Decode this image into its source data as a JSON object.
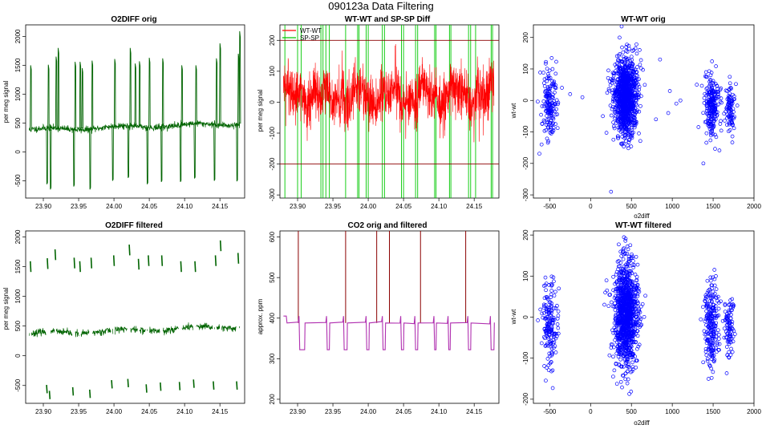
{
  "figure": {
    "title": "090123a   Data Filtering"
  },
  "chart_data": [
    {
      "id": "p1",
      "type": "line",
      "title": "O2DIFF orig",
      "xlabel": "",
      "ylabel": "per meg signal",
      "xlim": [
        23.875,
        24.185
      ],
      "ylim": [
        -800,
        2200
      ],
      "xticks": [
        23.9,
        23.95,
        24.0,
        24.05,
        24.1,
        24.15
      ],
      "xtick_labels": [
        "23.90",
        "23.95",
        "24.00",
        "24.05",
        "24.10",
        "24.15"
      ],
      "yticks": [
        -500,
        0,
        500,
        1000,
        1500,
        2000
      ],
      "ytick_labels": [
        "-500",
        "0",
        "500",
        "1000",
        "1500",
        "2000"
      ],
      "series": [
        {
          "name": "O2DIFF orig",
          "color": "#006400",
          "x_range": [
            23.88,
            24.178
          ],
          "baseline_start": 380,
          "baseline_end": 490,
          "noise": 28
        }
      ],
      "spikes": [
        {
          "x": 23.882,
          "y": 1500
        },
        {
          "x": 23.905,
          "y": -560
        },
        {
          "x": 23.907,
          "y": 1510
        },
        {
          "x": 23.91,
          "y": -650
        },
        {
          "x": 23.918,
          "y": 1650
        },
        {
          "x": 23.921,
          "y": 1800
        },
        {
          "x": 23.943,
          "y": -600
        },
        {
          "x": 23.945,
          "y": 1560
        },
        {
          "x": 23.952,
          "y": 1560
        },
        {
          "x": 23.955,
          "y": 1450
        },
        {
          "x": 23.966,
          "y": -650
        },
        {
          "x": 23.969,
          "y": 1580
        },
        {
          "x": 23.998,
          "y": -500
        },
        {
          "x": 24.001,
          "y": 1610
        },
        {
          "x": 24.02,
          "y": -450
        },
        {
          "x": 24.023,
          "y": 1800
        },
        {
          "x": 24.03,
          "y": 1530
        },
        {
          "x": 24.036,
          "y": 1570
        },
        {
          "x": 24.047,
          "y": -560
        },
        {
          "x": 24.05,
          "y": 1630
        },
        {
          "x": 24.067,
          "y": -520
        },
        {
          "x": 24.069,
          "y": 1620
        },
        {
          "x": 24.094,
          "y": -520
        },
        {
          "x": 24.096,
          "y": 1500
        },
        {
          "x": 24.114,
          "y": -460
        },
        {
          "x": 24.116,
          "y": 1500
        },
        {
          "x": 24.142,
          "y": -500
        },
        {
          "x": 24.145,
          "y": 1620
        },
        {
          "x": 24.15,
          "y": 1880
        },
        {
          "x": 24.174,
          "y": -510
        },
        {
          "x": 24.176,
          "y": 1700
        },
        {
          "x": 24.178,
          "y": 2090
        }
      ]
    },
    {
      "id": "p2",
      "type": "line",
      "title": "WT-WT and SP-SP Diff",
      "xlabel": "",
      "ylabel": "per meg signal",
      "xlim": [
        23.875,
        24.185
      ],
      "ylim": [
        -310,
        250
      ],
      "xticks": [
        23.9,
        23.95,
        24.0,
        24.05,
        24.1,
        24.15
      ],
      "xtick_labels": [
        "23.90",
        "23.95",
        "24.00",
        "24.05",
        "24.10",
        "24.15"
      ],
      "yticks": [
        -300,
        -200,
        -100,
        0,
        100,
        200
      ],
      "ytick_labels": [
        "-300",
        "-200",
        "-100",
        "0",
        "100",
        "200"
      ],
      "hlines": [
        {
          "y": 200,
          "color": "#8b0000"
        },
        {
          "y": -200,
          "color": "#8b0000"
        }
      ],
      "legend": [
        {
          "label": "WT-WT",
          "color": "#ff0000"
        },
        {
          "label": "SP-SP",
          "color": "#00c800"
        }
      ],
      "series": [
        {
          "name": "WT-WT",
          "color": "#ff0000",
          "x_range": [
            23.88,
            24.178
          ],
          "mean": 20,
          "amplitude": 75
        },
        {
          "name": "SP-SP",
          "color": "#00c800",
          "x_spikes": [
            23.882,
            23.9,
            23.905,
            23.933,
            23.936,
            23.94,
            23.945,
            23.968,
            23.985,
            23.987,
            23.997,
            24.0,
            24.02,
            24.023,
            24.047,
            24.05,
            24.067,
            24.07,
            24.094,
            24.096,
            24.115,
            24.117,
            24.142,
            24.145,
            24.152,
            24.174,
            24.176
          ]
        }
      ]
    },
    {
      "id": "p3",
      "type": "scatter",
      "title": "WT-WT orig",
      "xlabel": "o2diff",
      "ylabel": "wt-wt",
      "xlim": [
        -700,
        2000
      ],
      "ylim": [
        -310,
        240
      ],
      "xticks": [
        -500,
        0,
        500,
        1000,
        1500,
        2000
      ],
      "xtick_labels": [
        "-500",
        "0",
        "500",
        "1000",
        "1500",
        "2000"
      ],
      "yticks": [
        -300,
        -200,
        -100,
        0,
        100,
        200
      ],
      "ytick_labels": [
        "-300",
        "-200",
        "-100",
        "0",
        "100",
        "200"
      ],
      "marker_color": "#0000ff",
      "clusters": [
        {
          "x_center": -500,
          "x_spread": 45,
          "y_center": -10,
          "y_spread": 50,
          "count": 170
        },
        {
          "x_center": 430,
          "x_spread": 70,
          "y_center": 10,
          "y_spread": 60,
          "count": 1100
        },
        {
          "x_center": 1480,
          "x_spread": 45,
          "y_center": -15,
          "y_spread": 50,
          "count": 220
        },
        {
          "x_center": 1700,
          "x_spread": 35,
          "y_center": -20,
          "y_spread": 40,
          "count": 90
        }
      ],
      "outliers": [
        {
          "x": 380,
          "y": 235
        },
        {
          "x": 250,
          "y": -290
        },
        {
          "x": 970,
          "y": 30
        },
        {
          "x": 1050,
          "y": -10
        },
        {
          "x": 950,
          "y": -40
        },
        {
          "x": 1100,
          "y": 0
        },
        {
          "x": -250,
          "y": 20
        },
        {
          "x": -100,
          "y": 10
        },
        {
          "x": 150,
          "y": -50
        },
        {
          "x": 800,
          "y": -60
        },
        {
          "x": 850,
          "y": 130
        },
        {
          "x": 1380,
          "y": -200
        },
        {
          "x": 1300,
          "y": 50
        },
        {
          "x": -600,
          "y": -140
        },
        {
          "x": -350,
          "y": 40
        },
        {
          "x": 600,
          "y": 160
        }
      ]
    },
    {
      "id": "p4",
      "type": "line",
      "title": "O2DIFF filtered",
      "xlabel": "",
      "ylabel": "per meg signal",
      "xlim": [
        23.875,
        24.185
      ],
      "ylim": [
        -800,
        2100
      ],
      "xticks": [
        23.9,
        23.95,
        24.0,
        24.05,
        24.1,
        24.15
      ],
      "xtick_labels": [
        "23.90",
        "23.95",
        "24.00",
        "24.05",
        "24.10",
        "24.15"
      ],
      "yticks": [
        -500,
        0,
        500,
        1000,
        1500,
        2000
      ],
      "ytick_labels": [
        "-500",
        "0",
        "500",
        "1000",
        "1500",
        "2000"
      ],
      "series": [
        {
          "name": "O2DIFF filtered",
          "color": "#006400",
          "x_range": [
            23.88,
            24.178
          ],
          "baseline_start": 370,
          "baseline_end": 490,
          "noise": 28
        }
      ],
      "high_segments": [
        {
          "x": 23.882,
          "y": 1500
        },
        {
          "x": 23.906,
          "y": 1550
        },
        {
          "x": 23.917,
          "y": 1700
        },
        {
          "x": 23.944,
          "y": 1560
        },
        {
          "x": 23.952,
          "y": 1500
        },
        {
          "x": 23.968,
          "y": 1560
        },
        {
          "x": 24.0,
          "y": 1600
        },
        {
          "x": 24.022,
          "y": 1780
        },
        {
          "x": 24.035,
          "y": 1540
        },
        {
          "x": 24.049,
          "y": 1600
        },
        {
          "x": 24.068,
          "y": 1600
        },
        {
          "x": 24.095,
          "y": 1500
        },
        {
          "x": 24.115,
          "y": 1500
        },
        {
          "x": 24.144,
          "y": 1600
        },
        {
          "x": 24.151,
          "y": 1850
        },
        {
          "x": 24.176,
          "y": 1640
        }
      ],
      "low_segments": [
        {
          "x": 23.905,
          "y": -560
        },
        {
          "x": 23.909,
          "y": -660
        },
        {
          "x": 23.942,
          "y": -600
        },
        {
          "x": 23.966,
          "y": -640
        },
        {
          "x": 23.997,
          "y": -480
        },
        {
          "x": 24.02,
          "y": -460
        },
        {
          "x": 24.046,
          "y": -550
        },
        {
          "x": 24.066,
          "y": -520
        },
        {
          "x": 24.093,
          "y": -510
        },
        {
          "x": 24.113,
          "y": -470
        },
        {
          "x": 24.141,
          "y": -500
        },
        {
          "x": 24.174,
          "y": -500
        }
      ]
    },
    {
      "id": "p5",
      "type": "line",
      "title": "CO2 orig and filtered",
      "xlabel": "",
      "ylabel": "approx. ppm",
      "xlim": [
        23.875,
        24.185
      ],
      "ylim": [
        190,
        615
      ],
      "xticks": [
        23.9,
        23.95,
        24.0,
        24.05,
        24.1,
        24.15
      ],
      "xtick_labels": [
        "23.90",
        "23.95",
        "24.00",
        "24.05",
        "24.10",
        "24.15"
      ],
      "yticks": [
        200,
        300,
        400,
        500,
        600
      ],
      "ytick_labels": [
        "200",
        "300",
        "400",
        "500",
        "600"
      ],
      "series": [
        {
          "name": "CO2 orig",
          "color": "#8b0000",
          "spike_x": [
            23.901,
            23.968,
            24.012,
            24.03,
            24.074,
            24.138
          ]
        },
        {
          "name": "CO2 filtered",
          "color": "#b030b0",
          "baseline": 388,
          "start_level": 405,
          "low_level": 322,
          "high_level": 405,
          "dips": [
            {
              "x0": 23.903,
              "x1": 23.91
            },
            {
              "x0": 23.942,
              "x1": 23.945
            },
            {
              "x0": 23.966,
              "x1": 23.97
            },
            {
              "x0": 23.998,
              "x1": 24.001
            },
            {
              "x0": 24.021,
              "x1": 24.024
            },
            {
              "x0": 24.047,
              "x1": 24.05
            },
            {
              "x0": 24.067,
              "x1": 24.07
            },
            {
              "x0": 24.094,
              "x1": 24.096
            },
            {
              "x0": 24.114,
              "x1": 24.116
            },
            {
              "x0": 24.142,
              "x1": 24.145
            },
            {
              "x0": 24.174,
              "x1": 24.178
            }
          ]
        }
      ]
    },
    {
      "id": "p6",
      "type": "scatter",
      "title": "WT-WT filtered",
      "xlabel": "o2diff",
      "ylabel": "wt-wt",
      "xlim": [
        -700,
        2000
      ],
      "ylim": [
        -210,
        210
      ],
      "xticks": [
        -500,
        0,
        500,
        1000,
        1500,
        2000
      ],
      "xtick_labels": [
        "-500",
        "0",
        "500",
        "1000",
        "1500",
        "2000"
      ],
      "yticks": [
        -200,
        -100,
        0,
        100,
        200
      ],
      "ytick_labels": [
        "-200",
        "-100",
        "0",
        "100",
        "200"
      ],
      "marker_color": "#0000ff",
      "clusters": [
        {
          "x_center": -500,
          "x_spread": 45,
          "y_center": -10,
          "y_spread": 55,
          "count": 170
        },
        {
          "x_center": 430,
          "x_spread": 70,
          "y_center": 10,
          "y_spread": 65,
          "count": 1100
        },
        {
          "x_center": 1480,
          "x_spread": 45,
          "y_center": -15,
          "y_spread": 55,
          "count": 220
        },
        {
          "x_center": 1700,
          "x_spread": 35,
          "y_center": -20,
          "y_spread": 45,
          "count": 90
        }
      ],
      "outliers": []
    }
  ]
}
